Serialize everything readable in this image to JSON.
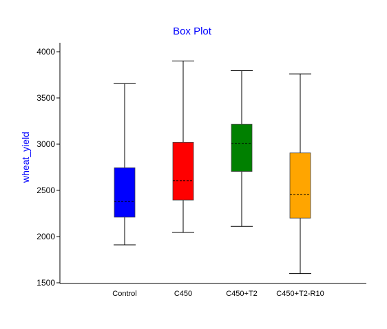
{
  "chart_data": {
    "type": "box",
    "title": "Box Plot",
    "ylabel": "wheat_yield",
    "xlabel": "",
    "ylim": [
      1500,
      4000
    ],
    "yticks": [
      1500,
      2000,
      2500,
      3000,
      3500,
      4000
    ],
    "categories": [
      "Control",
      "C450",
      "C450+T2",
      "C450+T2-R10"
    ],
    "boxes": [
      {
        "category": "Control",
        "min": 1910,
        "q1": 2210,
        "median": 2380,
        "q3": 2745,
        "max": 3655,
        "color": "#0000ff"
      },
      {
        "category": "C450",
        "min": 2045,
        "q1": 2395,
        "median": 2605,
        "q3": 3020,
        "max": 3900,
        "color": "#ff0000"
      },
      {
        "category": "C450+T2",
        "min": 2110,
        "q1": 2705,
        "median": 3005,
        "q3": 3215,
        "max": 3795,
        "color": "#008000"
      },
      {
        "category": "C450+T2-R10",
        "min": 1600,
        "q1": 2200,
        "median": 2455,
        "q3": 2905,
        "max": 3760,
        "color": "#ffa500"
      }
    ],
    "title_color": "#0000ff",
    "ylabel_color": "#0000ff",
    "grid": false,
    "legend": "none"
  }
}
